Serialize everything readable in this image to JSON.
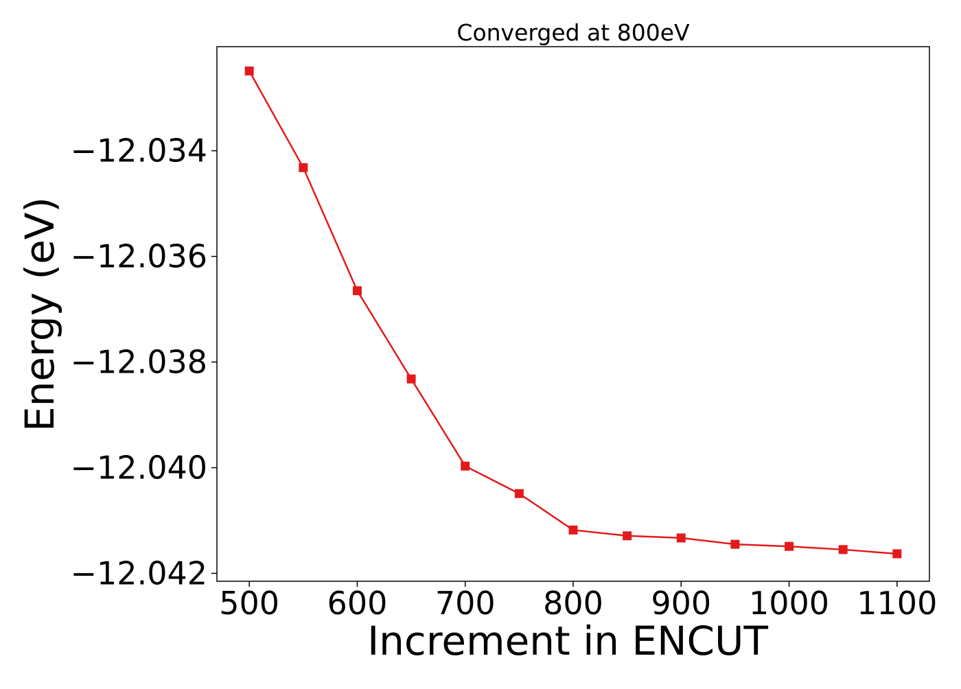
{
  "chart_data": {
    "type": "line",
    "title": "Converged at 800eV",
    "xlabel": "Increment in ENCUT",
    "ylabel": "Energy (eV)",
    "xlim": [
      470,
      1130
    ],
    "ylim": [
      -12.04215,
      -12.03203
    ],
    "xticks": [
      500,
      600,
      700,
      800,
      900,
      1000,
      1100
    ],
    "xtick_labels": [
      "500",
      "600",
      "700",
      "800",
      "900",
      "1000",
      "1100"
    ],
    "yticks": [
      -12.034,
      -12.036,
      -12.038,
      -12.04,
      -12.042
    ],
    "ytick_labels": [
      "−12.034",
      "−12.036",
      "−12.038",
      "−12.040",
      "−12.042"
    ],
    "grid": false,
    "legend": "none",
    "series": [
      {
        "color": "#e31a1c",
        "marker": "square",
        "x": [
          500,
          550,
          600,
          650,
          700,
          750,
          800,
          850,
          900,
          950,
          1000,
          1050,
          1100
        ],
        "y": [
          -12.03249,
          -12.03432,
          -12.03665,
          -12.03832,
          -12.03997,
          -12.04049,
          -12.04118,
          -12.04129,
          -12.04133,
          -12.04145,
          -12.04149,
          -12.04155,
          -12.04163
        ]
      }
    ]
  }
}
